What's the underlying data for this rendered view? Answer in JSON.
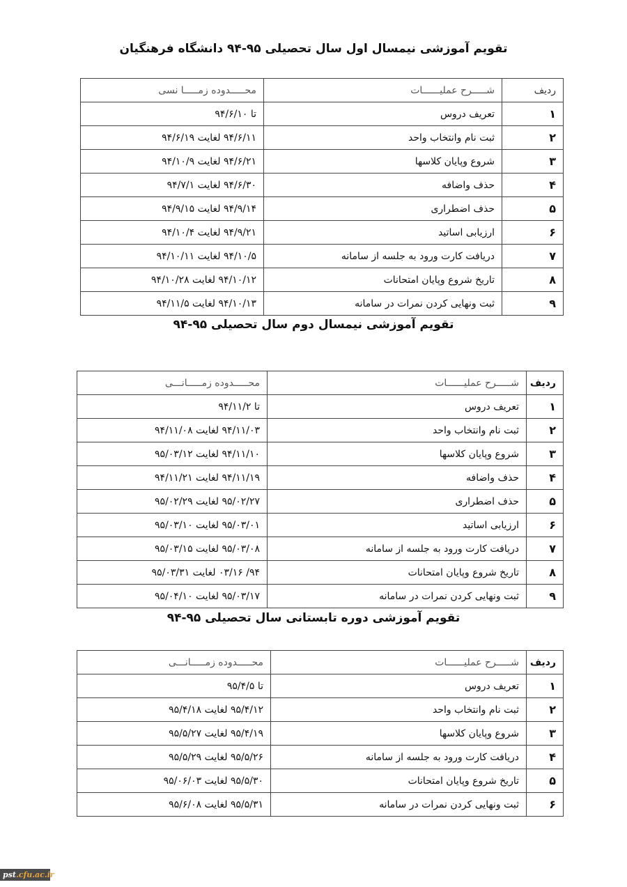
{
  "tables": [
    {
      "title": "تقویم آموزشی نیمسال اول سال تحصیلی ۹۵-۹۴ دانشگاه فرهنگیان",
      "headers": {
        "num": "ردیف",
        "desc": "شـــــرح عملیــــــات",
        "date": "محـــــدوده زمـــــا نسی"
      },
      "rows": [
        {
          "num": "۱",
          "desc": "تعریف دروس",
          "date": "تا ۹۴/۶/۱۰"
        },
        {
          "num": "۲",
          "desc": "ثبت نام وانتخاب واحد",
          "date": "۹۴/۶/۱۱ لغایت ۹۴/۶/۱۹"
        },
        {
          "num": "۳",
          "desc": "شروع وپایان کلاسها",
          "date": "۹۴/۶/۲۱ لغایت ۹۴/۱۰/۹"
        },
        {
          "num": "۴",
          "desc": "حذف واضافه",
          "date": "۹۴/۶/۳۰ لغایت ۹۴/۷/۱"
        },
        {
          "num": "۵",
          "desc": "حذف اضطراری",
          "date": "۹۴/۹/۱۴ لغایت ۹۴/۹/۱۵"
        },
        {
          "num": "۶",
          "desc": "ارزیابی اساتید",
          "date": "۹۴/۹/۲۱ لغایت ۹۴/۱۰/۴"
        },
        {
          "num": "۷",
          "desc": "دریافت کارت ورود به جلسه از سامانه",
          "date": "۹۴/۱۰/۵ لغایت ۹۴/۱۰/۱۱"
        },
        {
          "num": "۸",
          "desc": "تاریخ شروع وپایان امتحانات",
          "date": "۹۴/۱۰/۱۲ لغایت ۹۴/۱۰/۲۸"
        },
        {
          "num": "۹",
          "desc": "ثبت ونهایی کردن نمرات در سامانه",
          "date": "۹۴/۱۰/۱۳ لغایت ۹۴/۱۱/۵"
        }
      ]
    },
    {
      "title": "تقویم آموزشی نیمسال دوم سال تحصیلی ۹۵-۹۴",
      "headers": {
        "num": "ردیف",
        "desc": "شـــــرح عملیــــــات",
        "date": "محـــــدوده زمـــــانـــی"
      },
      "rows": [
        {
          "num": "۱",
          "desc": "تعریف دروس",
          "date": "تا ۹۴/۱۱/۲"
        },
        {
          "num": "۲",
          "desc": "ثبت نام وانتخاب واحد",
          "date": "۹۴/۱۱/۰۳ لغایت ۹۴/۱۱/۰۸"
        },
        {
          "num": "۳",
          "desc": "شروع وپایان کلاسها",
          "date": "۹۴/۱۱/۱۰ لغایت ۹۵/۰۳/۱۲"
        },
        {
          "num": "۴",
          "desc": "حذف واضافه",
          "date": "۹۴/۱۱/۱۹ لغایت ۹۴/۱۱/۲۱"
        },
        {
          "num": "۵",
          "desc": "حذف اضطراری",
          "date": "۹۵/۰۲/۲۷ لغایت ۹۵/۰۲/۲۹"
        },
        {
          "num": "۶",
          "desc": "ارزیابی اساتید",
          "date": "۹۵/۰۳/۰۱ لغایت ۹۵/۰۳/۱۰"
        },
        {
          "num": "۷",
          "desc": "دریافت کارت ورود به جلسه از سامانه",
          "date": "۹۵/۰۳/۰۸ لغایت ۹۵/۰۳/۱۵"
        },
        {
          "num": "۸",
          "desc": "تاریخ شروع وپایان امتحانات",
          "date": "۹۴/ ۰۳/۱۶ لغایت ۹۵/۰۳/۳۱"
        },
        {
          "num": "۹",
          "desc": "ثبت ونهایی کردن نمرات در سامانه",
          "date": "۹۵/۰۳/۱۷ لغایت ۹۵/۰۴/۱۰"
        }
      ]
    },
    {
      "title": "تقویم آموزشی دوره تابستانی سال تحصیلی ۹۵-۹۴",
      "headers": {
        "num": "ردیف",
        "desc": "شـــــرح عملیــــــات",
        "date": "محـــــدوده زمـــــانـــی"
      },
      "rows": [
        {
          "num": "۱",
          "desc": "تعریف دروس",
          "date": "تا ۹۵/۴/۵"
        },
        {
          "num": "۲",
          "desc": "ثبت نام وانتخاب واحد",
          "date": "۹۵/۴/۱۲ لغایت ۹۵/۴/۱۸"
        },
        {
          "num": "۳",
          "desc": "شروع وپایان کلاسها",
          "date": "۹۵/۴/۱۹ لغایت ۹۵/۵/۲۷"
        },
        {
          "num": "۴",
          "desc": "دریافت کارت ورود به جلسه از سامانه",
          "date": "۹۵/۵/۲۶ لغایت ۹۵/۵/۲۹"
        },
        {
          "num": "۵",
          "desc": "تاریخ شروع وپایان امتحانات",
          "date": "۹۵/۵/۳۰ لغایت ۹۵/۰۶/۰۳"
        },
        {
          "num": "۶",
          "desc": "ثبت ونهایی کردن نمرات در سامانه",
          "date": "۹۵/۵/۳۱ لغایت ۹۵/۶/۰۸"
        }
      ]
    }
  ],
  "watermark": {
    "part1": "pst",
    "part2": ".cfu.ac.ir",
    "colors": {
      "bg": "#4a4a4a",
      "part1": "#ffffff",
      "part2": "#e9a33a"
    }
  }
}
